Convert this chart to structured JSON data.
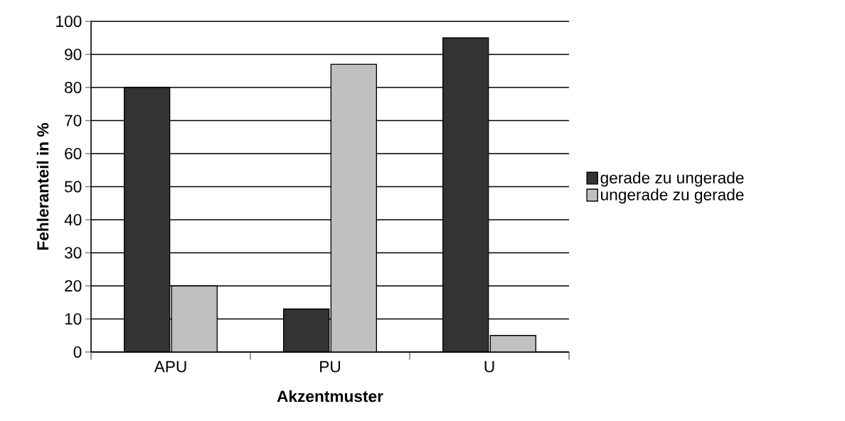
{
  "chart_data": {
    "type": "bar",
    "xlabel": "Akzentmuster",
    "ylabel": "Fehleranteil in %",
    "categories": [
      "APU",
      "PU",
      "U"
    ],
    "series": [
      {
        "name": "gerade zu ungerade",
        "color": "#333333",
        "values": [
          80,
          13,
          95
        ]
      },
      {
        "name": "ungerade zu gerade",
        "color": "#c0c0c0",
        "values": [
          20,
          87,
          5
        ]
      }
    ],
    "ylim": [
      0,
      100
    ],
    "yticks": [
      0,
      10,
      20,
      30,
      40,
      50,
      60,
      70,
      80,
      90,
      100
    ],
    "grid": "y",
    "legend": "right"
  }
}
